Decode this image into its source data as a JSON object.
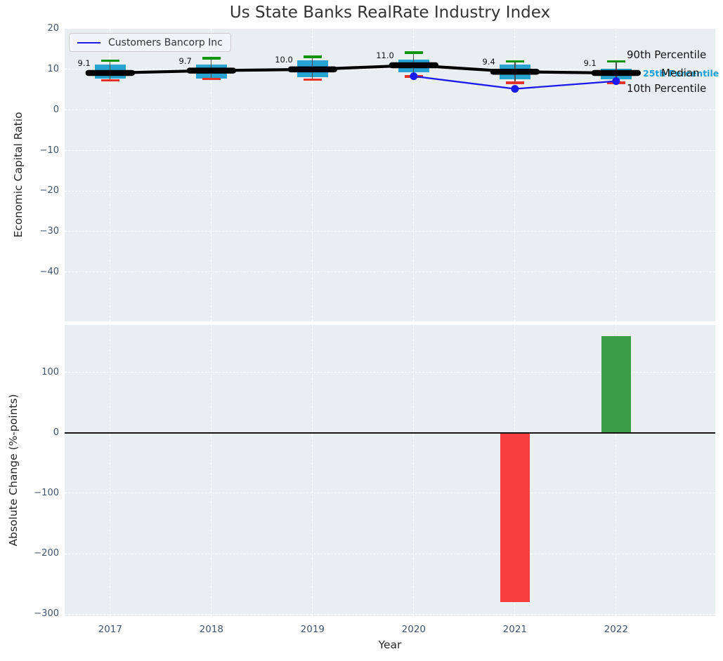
{
  "title": "Us State Banks RealRate Industry Index",
  "legend": {
    "label": "Customers Bancorp Inc"
  },
  "annotations": {
    "p90": "90th Percentile",
    "median": "Median",
    "p25": "25th Percentile",
    "p10": "10th Percentile"
  },
  "colors": {
    "panel_bg": "#e9eef0",
    "grid": "#ffffff",
    "box_fill": "#29a3d2",
    "whisker_line": "#4d4d4d",
    "cap_high_green": "#0c950c",
    "cap_low_red": "#e53228",
    "median_black": "#000000",
    "company_blue": "#1a1aee",
    "bar_negative_red": "#f93e3e",
    "bar_positive_green": "#3c9e44",
    "annotation_teal": "#18a0d6",
    "tick_text": "#42546a",
    "title_text": "#333333"
  },
  "chart_data": [
    {
      "type": "boxplot",
      "title": "Us State Banks RealRate Industry Index",
      "ylabel": "Economic Capital Ratio",
      "xlim": [
        2016.55,
        2022.98
      ],
      "ylim": [
        -52.1,
        20
      ],
      "grid": true,
      "legend_position": "upper left",
      "categories": [
        2017,
        2018,
        2019,
        2020,
        2021,
        2022
      ],
      "yticks": [
        20,
        10,
        0,
        -10,
        -20,
        -30,
        -40
      ],
      "ytick_labels": [
        "20",
        "10",
        "0",
        "−10",
        "−20",
        "−30",
        "−40"
      ],
      "boxes": [
        {
          "year": 2017,
          "p10": 7.3,
          "q1": 7.7,
          "median": 9.1,
          "q3": 11.2,
          "p90": 12.1,
          "label": "9.1"
        },
        {
          "year": 2018,
          "p10": 7.6,
          "q1": 7.8,
          "median": 9.7,
          "q3": 11.2,
          "p90": 12.7,
          "label": "9.7"
        },
        {
          "year": 2019,
          "p10": 7.5,
          "q1": 8.1,
          "median": 10.0,
          "q3": 12.2,
          "p90": 13.1,
          "label": "10.0"
        },
        {
          "year": 2020,
          "p10": 8.2,
          "q1": 9.3,
          "median": 11.0,
          "q3": 12.4,
          "p90": 14.1,
          "label": "11.0"
        },
        {
          "year": 2021,
          "p10": 6.7,
          "q1": 7.6,
          "median": 9.4,
          "q3": 11.2,
          "p90": 12.0,
          "label": "9.4"
        },
        {
          "year": 2022,
          "p10": 6.7,
          "q1": 7.6,
          "median": 9.1,
          "q3": 10.1,
          "p90": 12.0,
          "label": "9.1"
        }
      ],
      "series": [
        {
          "name": "Customers Bancorp Inc",
          "x": [
            2020,
            2021,
            2022
          ],
          "values": [
            8.3,
            5.2,
            7.1
          ]
        }
      ]
    },
    {
      "type": "bar",
      "ylabel": "Absolute Change (%-points)",
      "xlabel": "Year",
      "xlim": [
        2016.55,
        2022.98
      ],
      "ylim": [
        -303,
        179
      ],
      "grid": true,
      "categories": [
        2017,
        2018,
        2019,
        2020,
        2021,
        2022
      ],
      "xtick_labels": [
        "2017",
        "2018",
        "2019",
        "2020",
        "2021",
        "2022"
      ],
      "yticks": [
        100,
        0,
        -100,
        -200,
        -300
      ],
      "ytick_labels": [
        "100",
        "0",
        "−100",
        "−200",
        "−300"
      ],
      "values": [
        0,
        0,
        0,
        0,
        -280,
        160
      ]
    }
  ]
}
